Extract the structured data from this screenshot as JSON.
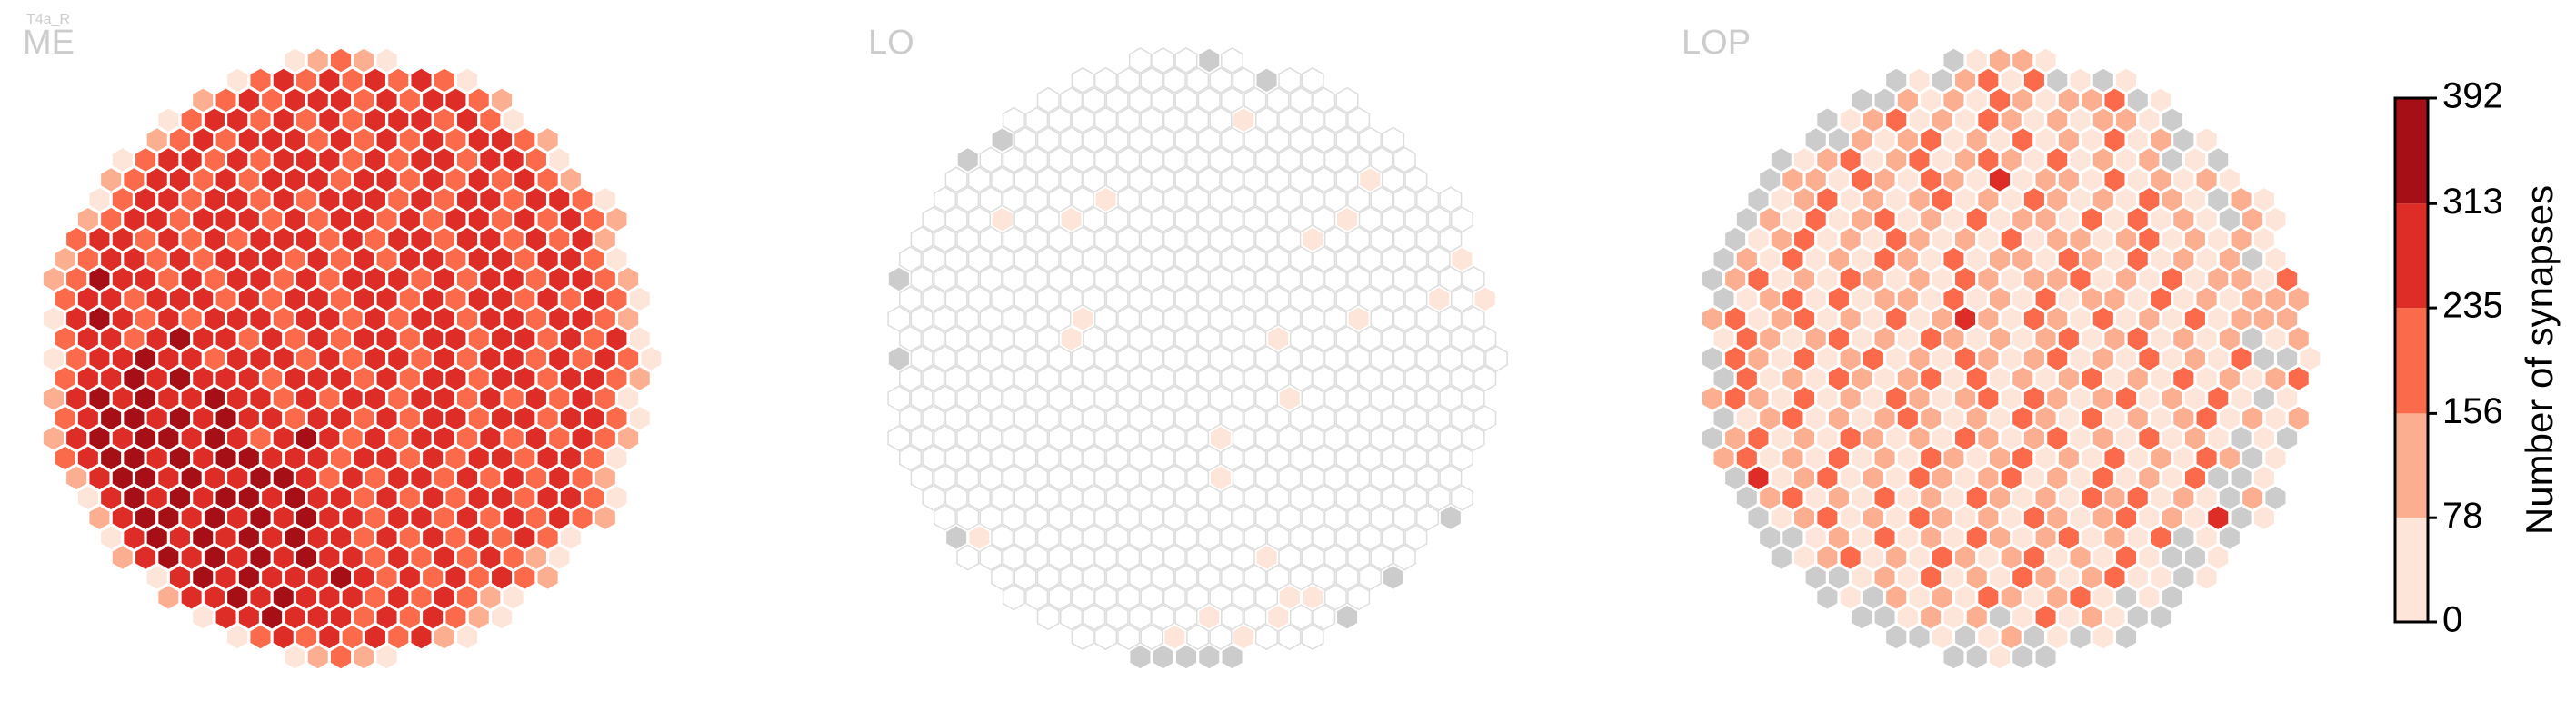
{
  "chart_data": {
    "type": "hexmap",
    "title": "T4a_R",
    "empty_color": "#ffffff",
    "missing_color": "#cccccc",
    "panels": [
      {
        "label": "ME",
        "rows": [
          "12321",
          "13434343431",
          "23434443434432",
          "1344343434443431",
          "234344434343434432",
          "13443434443434434431",
          "234434344434434343432",
          "13443443434443434434431",
          "234434443434434344343432",
          "344343434443434434434342",
          "2344343444343434434434431",
          "23544343443434443434434432",
          "34434443434434434344343431",
          "14543434443443434434434432",
          "34434544343434434434434341",
          "134454434443434434344343431",
          "34454544434443434434434432",
          "24545445443434434434343431",
          "34554545443443434434434431",
          "24545545434543434434343432",
          "3455454554443443434434431",
          "245545445543434434343432",
          "145454554544343434434431",
          "24554545454434434343432",
          "145454545443434343431",
          "24545454544343434321",
          "145454445434343432",
          "2445454443434321",
          "14454443434321",
          "13434343421",
          "12321"
        ]
      },
      {
        "label": "LO",
        "rows": [
          "000g0",
          "00000000g00",
          "00000000000000",
          "0000000000100000",
          "g00000000000000000",
          "g0000000000000000000",
          "000000000000000000100",
          "00000001000000000000000",
          "000100100000000000100000",
          "000000000000000001000000",
          "0000000000000000000000001",
          "g0000000000000000000000000",
          "00000000000000000000000101",
          "00000000100000000000100000",
          "00000001000000001000000000",
          "g00000000000000000000000000",
          "00000000000000000000000000",
          "00000000000000000100000000",
          "00000000000000000000000000",
          "00000000000000100000000000",
          "0000000000000000000000000",
          "000000000000010000000000",
          "000000000000000000000000",
          "0000000000000000000000g",
          "g10000000000000000000",
          "00000000000001000000",
          "00000000000000000g",
          "0000000000001100",
          "0000000100100g",
          "00001001000",
          "ggggg"
        ]
      },
      {
        "label": "LOP",
        "rows": [
          "g1221",
          "g1g2313g1g1",
          "gg2121321223g1",
          "g12312132121221g",
          "gg21231213121312g1",
          "g1231231232131212g1g",
          "g22132132141221312121",
          "g1231212312132121321g21",
          "g21312312131221313121g21",
          "g12312132121312212312121",
          "g2131213213122132131212g1",
          "g2312132121321223121312213",
          "g1231312213121312213121222",
          "23123121312421321312131222",
          "13212312132121231231212g12",
          "g32131231213212312131213gg1",
          "g3121321231312123121312123",
          "232131213212313212312131g1",
          "g1231212321213213121231212",
          "g2312132121321231213121g1g",
          "23121312132123121312132g1",
          "g41231213212312131213gg1",
          "g23121312132121323121g2g",
          "g12312132121321231214g1",
          "gg1213121321231213g1g",
          "g1231213212312131gg1",
          "gg12131213212311g1",
          "g1g2121321231g1g",
          "gg1212g13121gg",
          "gg1g12g1g1g",
          "gg1gg"
        ]
      }
    ],
    "colorbar": {
      "label": "Number of synapses",
      "ticks": [
        0,
        78,
        156,
        235,
        313,
        392
      ],
      "colors": [
        "#fee5d9",
        "#fcae91",
        "#fb6a4a",
        "#de2d26",
        "#a50f15"
      ]
    }
  }
}
